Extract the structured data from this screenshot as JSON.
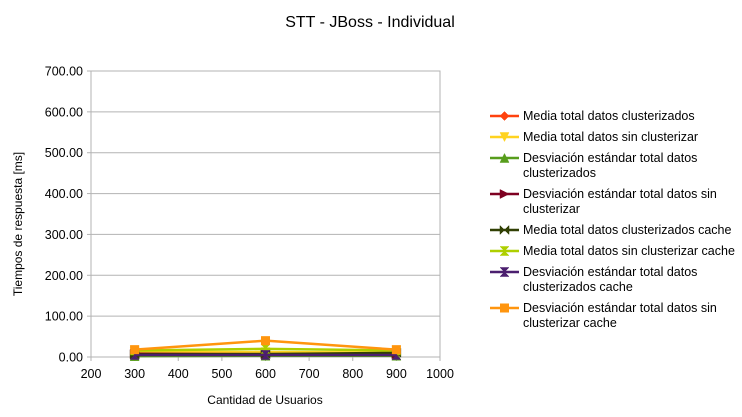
{
  "chart_data": {
    "type": "scatter",
    "title": "STT - JBoss - Individual",
    "xlabel": "Cantidad de Usuarios",
    "ylabel": "Tiempos de respuesta [ms]",
    "xlim": [
      200,
      1000
    ],
    "ylim": [
      0,
      700
    ],
    "x_ticks": [
      "200",
      "300",
      "400",
      "500",
      "600",
      "700",
      "800",
      "900",
      "1000"
    ],
    "y_ticks": [
      "0.00",
      "100.00",
      "200.00",
      "300.00",
      "400.00",
      "500.00",
      "600.00",
      "700.00"
    ],
    "grid": "horizontal",
    "legend_position": "right",
    "x": [
      300,
      600,
      900
    ],
    "series": [
      {
        "name": "Media total datos clusterizados",
        "values": [
          6,
          6,
          6
        ],
        "color": "#ff420e",
        "marker": "diamond"
      },
      {
        "name": "Media total datos sin clusterizar",
        "values": [
          13,
          12,
          11
        ],
        "color": "#ffd320",
        "marker": "triangle-down"
      },
      {
        "name": "Desviación estándar total datos clusterizados",
        "values": [
          2,
          3,
          3
        ],
        "color": "#579d1c",
        "marker": "triangle-up"
      },
      {
        "name": "Desviación estándar total datos sin clusterizar",
        "values": [
          8,
          7,
          7
        ],
        "color": "#7e0021",
        "marker": "triangle-right"
      },
      {
        "name": "Media total datos clusterizados cache",
        "values": [
          6,
          7,
          10
        ],
        "color": "#314004",
        "marker": "bowtie"
      },
      {
        "name": "Media total datos sin clusterizar cache",
        "values": [
          16,
          20,
          16
        ],
        "color": "#aecf00",
        "marker": "hourglass"
      },
      {
        "name": "Desviación estándar total datos clusterizados cache",
        "values": [
          5,
          5,
          5
        ],
        "color": "#4b1f6f",
        "marker": "hourglass"
      },
      {
        "name": "Desviación estándar total datos sin clusterizar cache",
        "values": [
          18,
          40,
          18
        ],
        "color": "#ff950e",
        "marker": "square"
      }
    ]
  }
}
